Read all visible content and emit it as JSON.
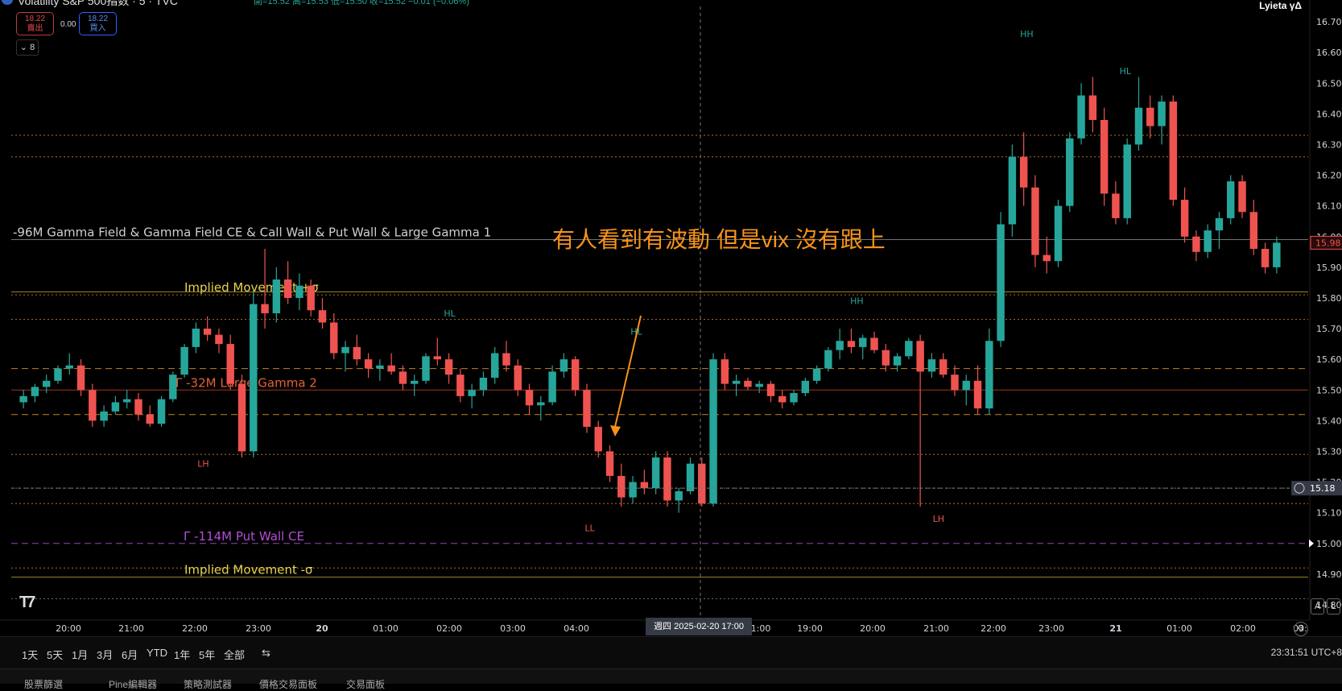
{
  "header": {
    "title": "Volatility S&P 500指数 · 5 · TVC",
    "ohlc": "開=15.52 高=15.53 低=15.50 收=15.52 −0.01 (−0.06%)",
    "sell": {
      "price": "18.22",
      "label": "賣出"
    },
    "buy": {
      "price": "18.22",
      "label": "買入"
    },
    "spread": "0.00",
    "indicator_count": "8",
    "top_right": "Lyieta γΔ"
  },
  "annotation": "有人看到有波動 但是vix 沒有跟上",
  "crosshair": {
    "price": "15.18",
    "date_label": "週四 2025-02-20   17:00"
  },
  "level_labels": [
    {
      "text": "-96M  Gamma Field & Gamma Field CE & Call Wall & Put Wall & Large Gamma 1",
      "y": 15.99,
      "x": 16,
      "color": "#cfcfcf"
    },
    {
      "text": "Implied Movement +σ",
      "y": 15.81,
      "x": 229,
      "color": "#e8d44d"
    },
    {
      "text": "Γ -32M  Large Gamma 2",
      "y": 15.5,
      "x": 218,
      "color": "#e0623a"
    },
    {
      "text": "Γ -114M  Put Wall CE",
      "y": 15.0,
      "x": 228,
      "color": "#b44fd6"
    },
    {
      "text": "Implied Movement -σ",
      "y": 14.89,
      "x": 229,
      "color": "#e8d44d"
    }
  ],
  "legend_buttons": {
    "A": "A",
    "L": "L"
  },
  "range_buttons": [
    "1天",
    "5天",
    "1月",
    "3月",
    "6月",
    "YTD",
    "1年",
    "5年",
    "全部"
  ],
  "clock": "23:31:51 UTC+8",
  "bottom_tabs": [
    "股票篩選",
    "Pine編輯器",
    "策略測試器",
    "價格交易面板",
    "交易面板"
  ],
  "colors": {
    "up": "#26a69a",
    "down": "#ef5350",
    "background": "#000000",
    "annotation": "#f7931a"
  },
  "chart_data": {
    "type": "candlestick",
    "title": "Volatility S&P 500指数",
    "interval": "5",
    "ylim": [
      14.75,
      16.75
    ],
    "yticks": [
      16.7,
      16.6,
      16.5,
      16.4,
      16.3,
      16.2,
      16.1,
      16.0,
      15.9,
      15.8,
      15.7,
      15.6,
      15.5,
      15.4,
      15.3,
      15.2,
      15.1,
      15.0,
      14.9,
      14.8
    ],
    "last_price": "15.98",
    "x_tick_labels": [
      "20:00",
      "21:00",
      "22:00",
      "23:00",
      "20",
      "01:00",
      "02:00",
      "03:00",
      "04:00",
      "1:00",
      "19:00",
      "20:00",
      "21:00",
      "22:00",
      "23:00",
      "21",
      "01:00",
      "02:00",
      "03:"
    ],
    "levels": [
      {
        "y": 15.99,
        "style": "solid",
        "color": "#888888"
      },
      {
        "y": 16.26,
        "style": "dotted",
        "color": "#d9812e"
      },
      {
        "y": 16.33,
        "style": "dotted",
        "color": "#d9812e"
      },
      {
        "y": 15.82,
        "style": "solid",
        "color": "#b5a42a"
      },
      {
        "y": 15.81,
        "style": "dotted",
        "color": "#d9812e"
      },
      {
        "y": 15.73,
        "style": "dotted",
        "color": "#d9812e"
      },
      {
        "y": 15.57,
        "style": "dashed",
        "color": "#e89a2a"
      },
      {
        "y": 15.5,
        "style": "solid",
        "color": "#c23b22"
      },
      {
        "y": 15.42,
        "style": "dashed",
        "color": "#e89a2a"
      },
      {
        "y": 15.29,
        "style": "dotted",
        "color": "#d9812e"
      },
      {
        "y": 15.18,
        "style": "dotted",
        "color": "#888888"
      },
      {
        "y": 15.13,
        "style": "dotted",
        "color": "#d9812e"
      },
      {
        "y": 15.0,
        "style": "dashed",
        "color": "#b44fd6"
      },
      {
        "y": 14.92,
        "style": "dotted",
        "color": "#d9812e"
      },
      {
        "y": 14.89,
        "style": "solid",
        "color": "#b5a42a"
      },
      {
        "y": 14.82,
        "style": "dotted",
        "color": "#888888"
      }
    ],
    "pivot_labels": [
      {
        "t": "LH",
        "x": 0.148,
        "y": 15.25,
        "c": "#ef5350"
      },
      {
        "t": "HL",
        "x": 0.338,
        "y": 15.74,
        "c": "#26a69a"
      },
      {
        "t": "LL",
        "x": 0.446,
        "y": 15.04,
        "c": "#ef5350"
      },
      {
        "t": "HL",
        "x": 0.482,
        "y": 15.68,
        "c": "#26a69a"
      },
      {
        "t": "HH",
        "x": 0.652,
        "y": 15.78,
        "c": "#26a69a"
      },
      {
        "t": "LH",
        "x": 0.715,
        "y": 15.07,
        "c": "#ef5350"
      },
      {
        "t": "HH",
        "x": 0.783,
        "y": 16.65,
        "c": "#26a69a"
      },
      {
        "t": "HL",
        "x": 0.859,
        "y": 16.53,
        "c": "#26a69a"
      }
    ],
    "series": [
      {
        "name": "VIX",
        "ohlc": [
          [
            15.46,
            15.5,
            15.44,
            15.48
          ],
          [
            15.48,
            15.52,
            15.46,
            15.51
          ],
          [
            15.51,
            15.55,
            15.49,
            15.53
          ],
          [
            15.53,
            15.58,
            15.52,
            15.57
          ],
          [
            15.57,
            15.62,
            15.55,
            15.58
          ],
          [
            15.58,
            15.6,
            15.48,
            15.5
          ],
          [
            15.5,
            15.52,
            15.38,
            15.4
          ],
          [
            15.4,
            15.45,
            15.38,
            15.43
          ],
          [
            15.43,
            15.48,
            15.42,
            15.46
          ],
          [
            15.46,
            15.5,
            15.44,
            15.47
          ],
          [
            15.47,
            15.49,
            15.4,
            15.42
          ],
          [
            15.42,
            15.45,
            15.38,
            15.39
          ],
          [
            15.39,
            15.48,
            15.38,
            15.47
          ],
          [
            15.47,
            15.56,
            15.46,
            15.55
          ],
          [
            15.55,
            15.65,
            15.54,
            15.64
          ],
          [
            15.64,
            15.72,
            15.62,
            15.7
          ],
          [
            15.7,
            15.74,
            15.66,
            15.68
          ],
          [
            15.68,
            15.7,
            15.62,
            15.65
          ],
          [
            15.65,
            15.68,
            15.5,
            15.52
          ],
          [
            15.52,
            15.55,
            15.28,
            15.3
          ],
          [
            15.3,
            15.82,
            15.28,
            15.78
          ],
          [
            15.78,
            15.96,
            15.7,
            15.75
          ],
          [
            15.75,
            15.9,
            15.72,
            15.86
          ],
          [
            15.86,
            15.92,
            15.78,
            15.8
          ],
          [
            15.8,
            15.88,
            15.76,
            15.84
          ],
          [
            15.84,
            15.86,
            15.74,
            15.76
          ],
          [
            15.76,
            15.8,
            15.7,
            15.72
          ],
          [
            15.72,
            15.75,
            15.6,
            15.62
          ],
          [
            15.62,
            15.66,
            15.56,
            15.64
          ],
          [
            15.64,
            15.68,
            15.58,
            15.6
          ],
          [
            15.6,
            15.62,
            15.54,
            15.57
          ],
          [
            15.57,
            15.6,
            15.53,
            15.58
          ],
          [
            15.58,
            15.62,
            15.55,
            15.56
          ],
          [
            15.56,
            15.58,
            15.5,
            15.52
          ],
          [
            15.52,
            15.55,
            15.48,
            15.53
          ],
          [
            15.53,
            15.62,
            15.52,
            15.61
          ],
          [
            15.61,
            15.67,
            15.58,
            15.6
          ],
          [
            15.6,
            15.62,
            15.52,
            15.55
          ],
          [
            15.55,
            15.57,
            15.46,
            15.48
          ],
          [
            15.48,
            15.52,
            15.44,
            15.5
          ],
          [
            15.5,
            15.56,
            15.48,
            15.54
          ],
          [
            15.54,
            15.64,
            15.52,
            15.62
          ],
          [
            15.62,
            15.66,
            15.56,
            15.58
          ],
          [
            15.58,
            15.6,
            15.48,
            15.5
          ],
          [
            15.5,
            15.52,
            15.42,
            15.45
          ],
          [
            15.45,
            15.48,
            15.4,
            15.46
          ],
          [
            15.46,
            15.58,
            15.45,
            15.56
          ],
          [
            15.56,
            15.62,
            15.54,
            15.6
          ],
          [
            15.6,
            15.61,
            15.48,
            15.5
          ],
          [
            15.5,
            15.52,
            15.36,
            15.38
          ],
          [
            15.38,
            15.4,
            15.28,
            15.3
          ],
          [
            15.3,
            15.32,
            15.2,
            15.22
          ],
          [
            15.22,
            15.26,
            15.12,
            15.15
          ],
          [
            15.15,
            15.22,
            15.13,
            15.2
          ],
          [
            15.2,
            15.24,
            15.16,
            15.18
          ],
          [
            15.18,
            15.3,
            15.16,
            15.28
          ],
          [
            15.28,
            15.3,
            15.12,
            15.14
          ],
          [
            15.14,
            15.18,
            15.1,
            15.17
          ],
          [
            15.17,
            15.28,
            15.16,
            15.26
          ],
          [
            15.26,
            15.28,
            15.12,
            15.13
          ],
          [
            15.13,
            15.62,
            15.12,
            15.6
          ],
          [
            15.6,
            15.62,
            15.5,
            15.52
          ],
          [
            15.52,
            15.55,
            15.48,
            15.53
          ],
          [
            15.53,
            15.54,
            15.5,
            15.51
          ],
          [
            15.51,
            15.53,
            15.49,
            15.52
          ],
          [
            15.52,
            15.53,
            15.46,
            15.48
          ],
          [
            15.48,
            15.5,
            15.44,
            15.46
          ],
          [
            15.46,
            15.5,
            15.45,
            15.49
          ],
          [
            15.49,
            15.54,
            15.48,
            15.53
          ],
          [
            15.53,
            15.58,
            15.52,
            15.57
          ],
          [
            15.57,
            15.64,
            15.56,
            15.63
          ],
          [
            15.63,
            15.7,
            15.6,
            15.66
          ],
          [
            15.66,
            15.7,
            15.62,
            15.64
          ],
          [
            15.64,
            15.68,
            15.6,
            15.67
          ],
          [
            15.67,
            15.69,
            15.62,
            15.63
          ],
          [
            15.63,
            15.65,
            15.56,
            15.58
          ],
          [
            15.58,
            15.62,
            15.56,
            15.61
          ],
          [
            15.61,
            15.67,
            15.6,
            15.66
          ],
          [
            15.66,
            15.68,
            15.12,
            15.56
          ],
          [
            15.56,
            15.62,
            15.54,
            15.6
          ],
          [
            15.6,
            15.62,
            15.54,
            15.55
          ],
          [
            15.55,
            15.58,
            15.48,
            15.5
          ],
          [
            15.5,
            15.55,
            15.45,
            15.53
          ],
          [
            15.53,
            15.58,
            15.42,
            15.44
          ],
          [
            15.44,
            15.7,
            15.42,
            15.66
          ],
          [
            15.66,
            16.08,
            15.64,
            16.04
          ],
          [
            16.04,
            16.3,
            16.0,
            16.26
          ],
          [
            16.26,
            16.34,
            16.1,
            16.16
          ],
          [
            16.16,
            16.2,
            15.9,
            15.94
          ],
          [
            15.94,
            16.0,
            15.88,
            15.92
          ],
          [
            15.92,
            16.12,
            15.9,
            16.1
          ],
          [
            16.1,
            16.34,
            16.08,
            16.32
          ],
          [
            16.32,
            16.5,
            16.3,
            16.46
          ],
          [
            16.46,
            16.52,
            16.34,
            16.38
          ],
          [
            16.38,
            16.42,
            16.1,
            16.14
          ],
          [
            16.14,
            16.18,
            16.04,
            16.06
          ],
          [
            16.06,
            16.32,
            16.04,
            16.3
          ],
          [
            16.3,
            16.52,
            16.28,
            16.42
          ],
          [
            16.42,
            16.46,
            16.32,
            16.36
          ],
          [
            16.36,
            16.46,
            16.3,
            16.44
          ],
          [
            16.44,
            16.46,
            16.1,
            16.12
          ],
          [
            16.12,
            16.16,
            15.98,
            16.0
          ],
          [
            16.0,
            16.02,
            15.92,
            15.95
          ],
          [
            15.95,
            16.04,
            15.93,
            16.02
          ],
          [
            16.02,
            16.08,
            15.96,
            16.06
          ],
          [
            16.06,
            16.2,
            16.04,
            16.18
          ],
          [
            16.18,
            16.2,
            16.06,
            16.08
          ],
          [
            16.08,
            16.12,
            15.94,
            15.96
          ],
          [
            15.96,
            15.98,
            15.88,
            15.9
          ],
          [
            15.9,
            16.0,
            15.88,
            15.98
          ]
        ]
      }
    ]
  }
}
